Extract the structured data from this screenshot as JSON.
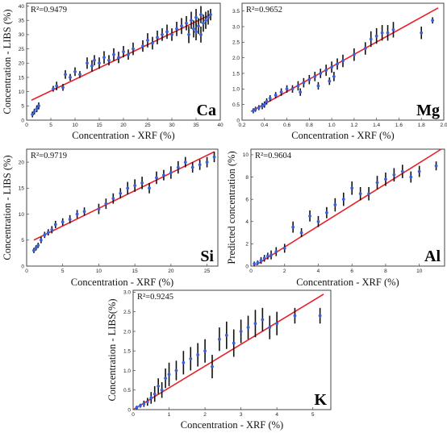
{
  "chart_data": [
    {
      "type": "scatter",
      "element": "Ca",
      "r2_label": "R²=0.9479",
      "xlabel": "Concentration  - XRF (%)",
      "ylabel": "Concentration  - LIBS (%)",
      "xlim": [
        0,
        40
      ],
      "ylim": [
        0,
        41
      ],
      "xticks": [
        0,
        5,
        10,
        15,
        20,
        25,
        30,
        35,
        40
      ],
      "yticks": [
        0,
        5,
        10,
        15,
        20,
        25,
        30,
        35,
        40
      ],
      "fit": [
        [
          1,
          7
        ],
        [
          38,
          37
        ]
      ],
      "points": [
        [
          1.2,
          2,
          1.0
        ],
        [
          1.6,
          3,
          1.0
        ],
        [
          2.1,
          4,
          1.2
        ],
        [
          2.5,
          5,
          1.2
        ],
        [
          5.5,
          11,
          1.0
        ],
        [
          6.2,
          12,
          1.5
        ],
        [
          7.5,
          11.5,
          1.2
        ],
        [
          8,
          16,
          1.5
        ],
        [
          9,
          15,
          1.2
        ],
        [
          10,
          17,
          1.5
        ],
        [
          11,
          16,
          1.2
        ],
        [
          12.5,
          20,
          2.0
        ],
        [
          13.5,
          19,
          2.0
        ],
        [
          14,
          21,
          1.8
        ],
        [
          15,
          20,
          2.0
        ],
        [
          16,
          22,
          2.2
        ],
        [
          17,
          21,
          1.8
        ],
        [
          18,
          23,
          2.2
        ],
        [
          19,
          22,
          2.0
        ],
        [
          20,
          24,
          2.0
        ],
        [
          21,
          23,
          1.8
        ],
        [
          22,
          25,
          2.2
        ],
        [
          24,
          26,
          2.0
        ],
        [
          25,
          28,
          2.5
        ],
        [
          26,
          27,
          2.2
        ],
        [
          27,
          29,
          2.4
        ],
        [
          28,
          30,
          2.2
        ],
        [
          29,
          31,
          2.5
        ],
        [
          30,
          30,
          2.2
        ],
        [
          31,
          32,
          2.5
        ],
        [
          32,
          33,
          2.8
        ],
        [
          33,
          34,
          2.5
        ],
        [
          34,
          35,
          3.0
        ],
        [
          34.5,
          32,
          3.0
        ],
        [
          35,
          36,
          3.0
        ],
        [
          35.5,
          33,
          2.8
        ],
        [
          36,
          37,
          3.0
        ],
        [
          36.5,
          34,
          3.0
        ],
        [
          37,
          35,
          3.0
        ],
        [
          37.5,
          36,
          2.5
        ],
        [
          38,
          37,
          2.0
        ],
        [
          33.5,
          30,
          3.0
        ],
        [
          35,
          31,
          3.0
        ],
        [
          36,
          30,
          2.8
        ]
      ]
    },
    {
      "type": "scatter",
      "element": "Mg",
      "r2_label": "R²=0.9652",
      "xlabel": "Concentration  - XRF (%)",
      "ylabel": "",
      "xlim": [
        0.2,
        2.0
      ],
      "ylim": [
        0,
        3.75
      ],
      "xticks": [
        0.2,
        0.4,
        0.6,
        0.8,
        1.0,
        1.2,
        1.4,
        1.6,
        1.8,
        2.0
      ],
      "xtick_labels": [
        "0.2",
        "0.4",
        "0.6",
        "0.8",
        "1.0",
        "1.2",
        "1.4",
        "1.6",
        "1.8",
        "2.0"
      ],
      "yticks": [
        0,
        0.5,
        1.0,
        1.5,
        2.0,
        2.5,
        3.0,
        3.5
      ],
      "ytick_labels": [
        "0",
        "0.5",
        "1.0",
        "1.5",
        "2.0",
        "2.5",
        "3.0",
        "3.5"
      ],
      "fit": [
        [
          0.28,
          0.28
        ],
        [
          1.95,
          3.6
        ]
      ],
      "points": [
        [
          0.3,
          0.3,
          0.08
        ],
        [
          0.32,
          0.35,
          0.08
        ],
        [
          0.35,
          0.4,
          0.08
        ],
        [
          0.38,
          0.45,
          0.1
        ],
        [
          0.4,
          0.5,
          0.1
        ],
        [
          0.42,
          0.6,
          0.1
        ],
        [
          0.45,
          0.7,
          0.1
        ],
        [
          0.5,
          0.8,
          0.1
        ],
        [
          0.55,
          0.9,
          0.12
        ],
        [
          0.6,
          1.0,
          0.12
        ],
        [
          0.65,
          1.0,
          0.12
        ],
        [
          0.7,
          1.1,
          0.15
        ],
        [
          0.75,
          1.2,
          0.15
        ],
        [
          0.8,
          1.3,
          0.15
        ],
        [
          0.85,
          1.4,
          0.15
        ],
        [
          0.9,
          1.5,
          0.15
        ],
        [
          0.95,
          1.6,
          0.18
        ],
        [
          1.0,
          1.7,
          0.18
        ],
        [
          1.05,
          1.8,
          0.18
        ],
        [
          1.1,
          1.9,
          0.2
        ],
        [
          1.2,
          2.1,
          0.2
        ],
        [
          1.3,
          2.3,
          0.2
        ],
        [
          1.35,
          2.6,
          0.25
        ],
        [
          1.4,
          2.7,
          0.25
        ],
        [
          1.45,
          2.8,
          0.25
        ],
        [
          1.5,
          2.8,
          0.25
        ],
        [
          1.55,
          2.9,
          0.25
        ],
        [
          1.8,
          2.8,
          0.2
        ],
        [
          1.9,
          3.2,
          0.1
        ],
        [
          0.72,
          0.9,
          0.12
        ],
        [
          0.88,
          1.1,
          0.12
        ],
        [
          0.98,
          1.25,
          0.12
        ],
        [
          1.02,
          1.4,
          0.15
        ]
      ]
    },
    {
      "type": "scatter",
      "element": "Si",
      "r2_label": "R²=0.9719",
      "xlabel": "Concentration  - XRF (%)",
      "ylabel": "Concentration  - LIBS (%)",
      "xlim": [
        0,
        26.5
      ],
      "ylim": [
        0,
        22.5
      ],
      "xticks": [
        0,
        5,
        10,
        15,
        20,
        25
      ],
      "yticks": [
        0,
        5,
        10,
        15,
        20
      ],
      "fit": [
        [
          1,
          5
        ],
        [
          26,
          22
        ]
      ],
      "points": [
        [
          1,
          3,
          0.5
        ],
        [
          1.3,
          3.5,
          0.5
        ],
        [
          1.6,
          4,
          0.5
        ],
        [
          2,
          5,
          0.6
        ],
        [
          2.5,
          6,
          0.6
        ],
        [
          3,
          6.5,
          0.6
        ],
        [
          3.5,
          7,
          0.7
        ],
        [
          4,
          8,
          0.7
        ],
        [
          5,
          8.5,
          0.7
        ],
        [
          6,
          9,
          0.8
        ],
        [
          7,
          10,
          0.8
        ],
        [
          8,
          10.5,
          0.8
        ],
        [
          10,
          11,
          1.0
        ],
        [
          11,
          12,
          1.0
        ],
        [
          12,
          13,
          1.0
        ],
        [
          13,
          14,
          1.0
        ],
        [
          14,
          15,
          1.2
        ],
        [
          15,
          15.5,
          1.2
        ],
        [
          16,
          16,
          1.2
        ],
        [
          17,
          15,
          1.0
        ],
        [
          18,
          17,
          1.2
        ],
        [
          19,
          17.5,
          1.0
        ],
        [
          20,
          18,
          1.2
        ],
        [
          21,
          19,
          1.2
        ],
        [
          22,
          20,
          1.0
        ],
        [
          23,
          19,
          1.0
        ],
        [
          24,
          19.5,
          1.0
        ],
        [
          25,
          20,
          1.0
        ],
        [
          26,
          21,
          1.0
        ]
      ]
    },
    {
      "type": "scatter",
      "element": "Al",
      "r2_label": "R²=0.9604",
      "xlabel": "Concentration  - XRF (%)",
      "ylabel": "Predicted concentration (%)",
      "xlim": [
        0,
        11.5
      ],
      "ylim": [
        0,
        10.5
      ],
      "xticks": [
        0,
        2,
        4,
        6,
        8,
        10
      ],
      "yticks": [
        0,
        2,
        4,
        6,
        8,
        10
      ],
      "fit": [
        [
          0.3,
          0.1
        ],
        [
          11.3,
          10.5
        ]
      ],
      "points": [
        [
          0.2,
          0.2,
          0.2
        ],
        [
          0.4,
          0.3,
          0.2
        ],
        [
          0.6,
          0.5,
          0.3
        ],
        [
          0.8,
          0.7,
          0.3
        ],
        [
          1.0,
          0.9,
          0.3
        ],
        [
          1.2,
          1.0,
          0.4
        ],
        [
          1.5,
          1.3,
          0.4
        ],
        [
          2.0,
          1.6,
          0.4
        ],
        [
          2.5,
          3.5,
          0.5
        ],
        [
          3,
          3.0,
          0.4
        ],
        [
          3.5,
          4.5,
          0.5
        ],
        [
          4,
          4.0,
          0.5
        ],
        [
          4.5,
          4.8,
          0.5
        ],
        [
          5,
          5.5,
          0.6
        ],
        [
          5.5,
          6.0,
          0.6
        ],
        [
          6,
          7.0,
          0.6
        ],
        [
          6.5,
          6.5,
          0.6
        ],
        [
          7,
          6.5,
          0.6
        ],
        [
          7.5,
          7.5,
          0.6
        ],
        [
          8,
          7.8,
          0.6
        ],
        [
          8.5,
          8.2,
          0.6
        ],
        [
          9,
          8.5,
          0.6
        ],
        [
          9.5,
          8.0,
          0.5
        ],
        [
          10,
          8.5,
          0.5
        ],
        [
          11,
          9.0,
          0.4
        ]
      ]
    },
    {
      "type": "scatter",
      "element": "K",
      "r2_label": "R²=0.9245",
      "xlabel": "Concentration  - XRF (%)",
      "ylabel": "Concentration  - LIBS(%)",
      "xlim": [
        0,
        5.5
      ],
      "ylim": [
        0,
        3.05
      ],
      "xticks": [
        0,
        1,
        2,
        3,
        4,
        5
      ],
      "yticks": [
        0,
        0.5,
        1.0,
        1.5,
        2.0,
        2.5,
        3.0
      ],
      "ytick_labels": [
        "0",
        "0.5",
        "1.0",
        "1.5",
        "2.0",
        "2.5",
        "3.0"
      ],
      "fit": [
        [
          0,
          0
        ],
        [
          5.3,
          2.95
        ]
      ],
      "points": [
        [
          0.1,
          0.05,
          0.05
        ],
        [
          0.2,
          0.1,
          0.05
        ],
        [
          0.3,
          0.15,
          0.08
        ],
        [
          0.4,
          0.2,
          0.1
        ],
        [
          0.5,
          0.3,
          0.15
        ],
        [
          0.6,
          0.4,
          0.2
        ],
        [
          0.7,
          0.6,
          0.2
        ],
        [
          0.8,
          0.5,
          0.2
        ],
        [
          0.9,
          0.8,
          0.25
        ],
        [
          1.0,
          0.9,
          0.3
        ],
        [
          1.2,
          1.0,
          0.25
        ],
        [
          1.4,
          1.2,
          0.3
        ],
        [
          1.6,
          1.3,
          0.3
        ],
        [
          1.8,
          1.4,
          0.3
        ],
        [
          2.0,
          1.5,
          0.3
        ],
        [
          2.2,
          1.1,
          0.3
        ],
        [
          2.4,
          1.8,
          0.3
        ],
        [
          2.6,
          1.9,
          0.35
        ],
        [
          2.8,
          1.7,
          0.35
        ],
        [
          3.0,
          2.0,
          0.3
        ],
        [
          3.2,
          2.1,
          0.3
        ],
        [
          3.4,
          2.2,
          0.35
        ],
        [
          3.6,
          2.3,
          0.3
        ],
        [
          3.8,
          2.1,
          0.3
        ],
        [
          4.0,
          2.2,
          0.3
        ],
        [
          4.5,
          2.4,
          0.2
        ],
        [
          5.2,
          2.4,
          0.2
        ]
      ]
    }
  ]
}
